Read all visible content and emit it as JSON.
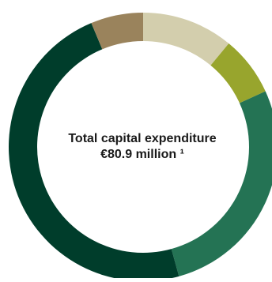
{
  "chart_data": {
    "type": "pie",
    "donut": true,
    "center_title": "Total capital expenditure",
    "center_value": "€80.9 million ¹",
    "unit": "share of total",
    "slices": [
      {
        "value": 11.0,
        "color": "#d3cead"
      },
      {
        "value": 7.2,
        "color": "#98a52d"
      },
      {
        "value": 27.5,
        "color": "#247354"
      },
      {
        "value": 48.0,
        "color": "#003d2b"
      },
      {
        "value": 6.3,
        "color": "#9a835c"
      }
    ]
  }
}
